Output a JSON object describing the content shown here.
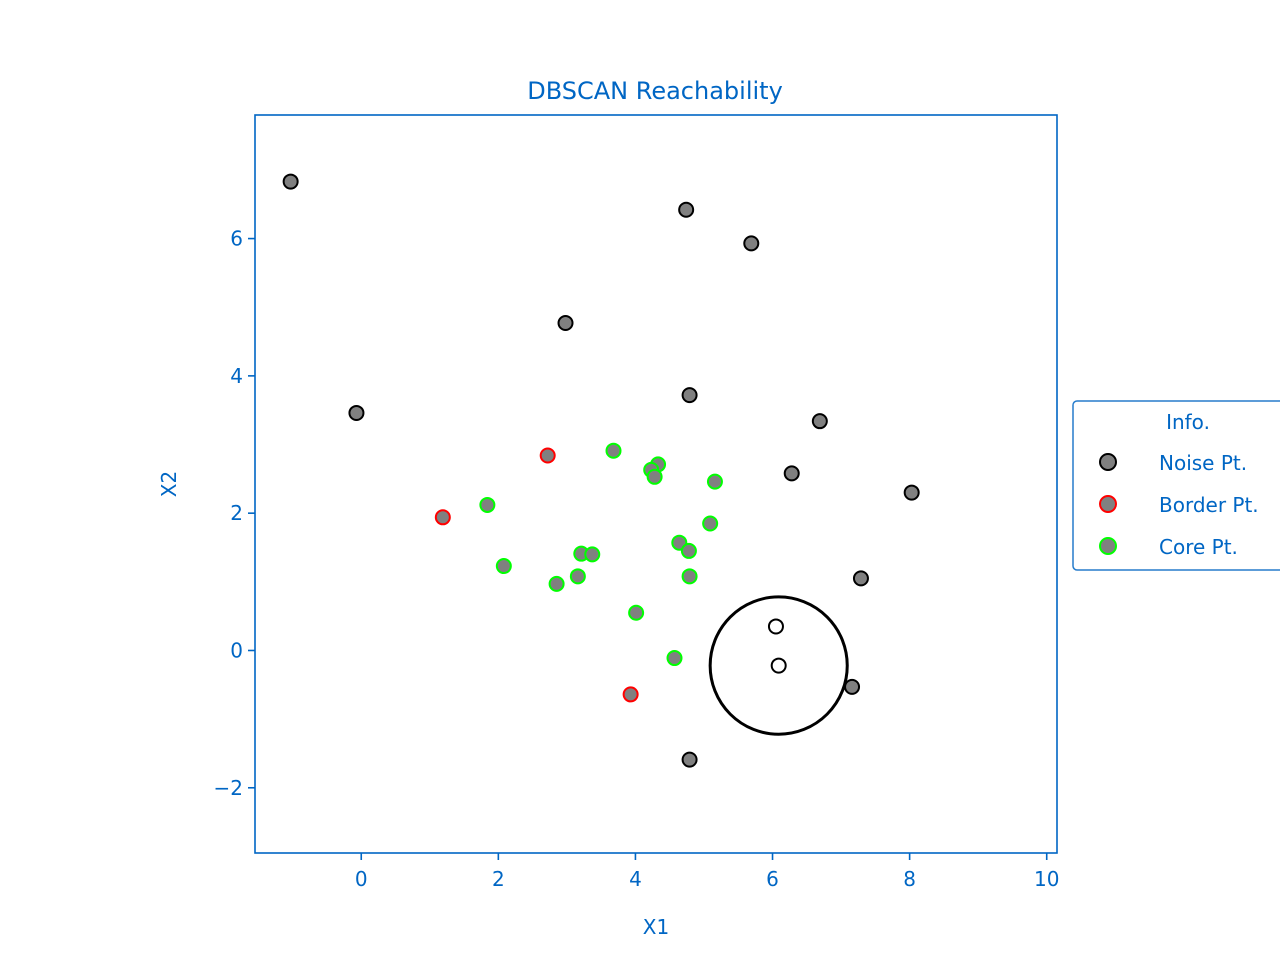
{
  "chart_data": {
    "type": "scatter",
    "title": "DBSCAN Reachability",
    "xlabel": "X1",
    "ylabel": "X2",
    "xlim": [
      -1.55,
      10.15
    ],
    "ylim": [
      -2.95,
      7.8
    ],
    "xticks": [
      0,
      2,
      4,
      6,
      8,
      10
    ],
    "yticks": [
      -2,
      0,
      2,
      4,
      6
    ],
    "grid": false,
    "legend": {
      "title": "Info.",
      "placement": "outside-right",
      "entries": [
        {
          "label": "Noise Pt.",
          "edge": "#000000"
        },
        {
          "label": "Border Pt.",
          "edge": "#ff0000"
        },
        {
          "label": "Core Pt.",
          "edge": "#00ff00"
        }
      ]
    },
    "colors": {
      "axis": "#0066c4",
      "fill": "#808080",
      "noise_edge": "#000000",
      "border_edge": "#ff0000",
      "core_edge": "#00ff00"
    },
    "series": [
      {
        "name": "Noise Pt.",
        "points": [
          [
            -1.03,
            6.83
          ],
          [
            -0.07,
            3.46
          ],
          [
            2.98,
            4.77
          ],
          [
            4.74,
            6.42
          ],
          [
            5.69,
            5.93
          ],
          [
            4.79,
            3.72
          ],
          [
            6.69,
            3.34
          ],
          [
            6.28,
            2.58
          ],
          [
            8.03,
            2.3
          ],
          [
            7.29,
            1.05
          ],
          [
            7.16,
            -0.53
          ],
          [
            4.79,
            -1.59
          ]
        ]
      },
      {
        "name": "Border Pt.",
        "points": [
          [
            2.72,
            2.84
          ],
          [
            1.19,
            1.94
          ],
          [
            3.93,
            -0.64
          ]
        ]
      },
      {
        "name": "Core Pt.",
        "points": [
          [
            3.68,
            2.91
          ],
          [
            4.33,
            2.71
          ],
          [
            4.23,
            2.63
          ],
          [
            4.28,
            2.53
          ],
          [
            5.16,
            2.46
          ],
          [
            1.84,
            2.12
          ],
          [
            5.09,
            1.85
          ],
          [
            4.64,
            1.57
          ],
          [
            4.78,
            1.45
          ],
          [
            3.21,
            1.41
          ],
          [
            3.37,
            1.4
          ],
          [
            2.08,
            1.23
          ],
          [
            4.79,
            1.08
          ],
          [
            3.16,
            1.08
          ],
          [
            2.85,
            0.97
          ],
          [
            4.01,
            0.55
          ],
          [
            4.57,
            -0.11
          ]
        ]
      }
    ],
    "annotation": {
      "query_points": [
        [
          6.05,
          0.35
        ],
        [
          6.09,
          -0.22
        ]
      ],
      "circle_center": [
        6.09,
        -0.22
      ],
      "circle_radius": 1.0
    }
  }
}
